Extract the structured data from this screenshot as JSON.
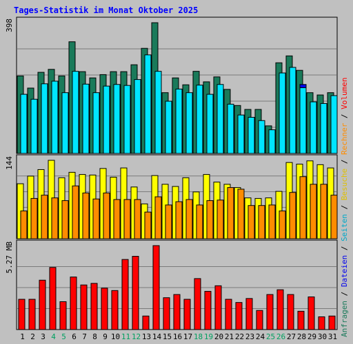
{
  "chart_data": [
    {
      "type": "bar",
      "title": "Tages-Statistik im Monat Oktober 2025",
      "categories": [
        "1",
        "2",
        "3",
        "4",
        "5",
        "6",
        "7",
        "8",
        "9",
        "10",
        "11",
        "12",
        "13",
        "14",
        "15",
        "16",
        "17",
        "18",
        "19",
        "20",
        "21",
        "22",
        "23",
        "24",
        "25",
        "26",
        "27",
        "28",
        "29",
        "30",
        "31"
      ],
      "weekend_days": [
        "4",
        "5",
        "11",
        "12",
        "18",
        "19",
        "25",
        "26"
      ],
      "ytick": "398",
      "ylim": [
        0,
        398
      ],
      "series": [
        {
          "name": "Anfragen",
          "color": "#1a7a5a",
          "values": [
            236,
            199,
            247,
            256,
            236,
            340,
            249,
            230,
            240,
            249,
            249,
            270,
            320,
            398,
            185,
            230,
            209,
            250,
            218,
            233,
            195,
            146,
            134,
            134,
            84,
            276,
            297,
            253,
            185,
            178,
            185
          ]
        },
        {
          "name": "Dateien",
          "color": "#0000ee",
          "values": [
            170,
            150,
            175,
            205,
            170,
            225,
            175,
            170,
            180,
            180,
            185,
            200,
            230,
            240,
            140,
            160,
            160,
            190,
            165,
            180,
            130,
            107,
            100,
            93,
            66,
            215,
            240,
            210,
            150,
            138,
            170
          ]
        },
        {
          "name": "Seiten",
          "color": "#00e5ff",
          "values": [
            180,
            165,
            212,
            220,
            185,
            250,
            211,
            185,
            205,
            210,
            207,
            225,
            300,
            250,
            159,
            196,
            185,
            208,
            180,
            210,
            150,
            117,
            110,
            100,
            72,
            245,
            262,
            200,
            157,
            152,
            176
          ]
        }
      ]
    },
    {
      "type": "bar",
      "categories": [
        "1",
        "2",
        "3",
        "4",
        "5",
        "6",
        "7",
        "8",
        "9",
        "10",
        "11",
        "12",
        "13",
        "14",
        "15",
        "16",
        "17",
        "18",
        "19",
        "20",
        "21",
        "22",
        "23",
        "24",
        "25",
        "26",
        "27",
        "28",
        "29",
        "30",
        "31"
      ],
      "ytick": "144",
      "ylim": [
        0,
        144
      ],
      "series": [
        {
          "name": "Besuche",
          "color": "#ffff00",
          "values": [
            101,
            115,
            127,
            144,
            112,
            122,
            118,
            117,
            129,
            113,
            130,
            95,
            64,
            116,
            100,
            96,
            112,
            86,
            118,
            104,
            100,
            94,
            75,
            74,
            75,
            87,
            140,
            137,
            143,
            136,
            130
          ]
        },
        {
          "name": "Rechner",
          "color": "#ff8c00",
          "values": [
            51,
            74,
            80,
            75,
            70,
            97,
            84,
            73,
            84,
            72,
            72,
            72,
            49,
            77,
            62,
            68,
            72,
            62,
            70,
            71,
            94,
            91,
            61,
            61,
            62,
            51,
            85,
            114,
            100,
            100,
            80
          ]
        }
      ]
    },
    {
      "type": "bar",
      "categories": [
        "1",
        "2",
        "3",
        "4",
        "5",
        "6",
        "7",
        "8",
        "9",
        "10",
        "11",
        "12",
        "13",
        "14",
        "15",
        "16",
        "17",
        "18",
        "19",
        "20",
        "21",
        "22",
        "23",
        "24",
        "25",
        "26",
        "27",
        "28",
        "29",
        "30",
        "31"
      ],
      "ytick": "5.27 MB",
      "ylim": [
        0,
        5.27
      ],
      "series": [
        {
          "name": "Volumen",
          "color": "#ff0000",
          "values": [
            1.9,
            1.9,
            3.1,
            3.9,
            1.75,
            3.3,
            2.8,
            2.9,
            2.6,
            2.45,
            4.4,
            4.6,
            0.85,
            5.27,
            2.0,
            2.2,
            1.9,
            3.2,
            2.4,
            2.75,
            1.9,
            1.7,
            1.95,
            1.2,
            2.2,
            2.5,
            2.2,
            1.15,
            2.05,
            0.8,
            0.85
          ]
        }
      ]
    }
  ],
  "right_legend": [
    {
      "text": "Anfragen",
      "color": "#1a7a5a"
    },
    {
      "text": " / ",
      "color": "#000000"
    },
    {
      "text": "Dateien",
      "color": "#0000ee"
    },
    {
      "text": " / ",
      "color": "#000000"
    },
    {
      "text": "Seiten",
      "color": "#00a8c8"
    },
    {
      "text": " / ",
      "color": "#000000"
    },
    {
      "text": "Besuche",
      "color": "#e0c000"
    },
    {
      "text": " / ",
      "color": "#000000"
    },
    {
      "text": "Rechner",
      "color": "#ff8c00"
    },
    {
      "text": " / ",
      "color": "#000000"
    },
    {
      "text": "Volumen",
      "color": "#ff0000"
    }
  ],
  "colors": {
    "background": "#c0c0c0",
    "plot": "#c0c0c0",
    "title": "#0000ff",
    "weekend_label": "#00a060",
    "grid": "#808080"
  }
}
